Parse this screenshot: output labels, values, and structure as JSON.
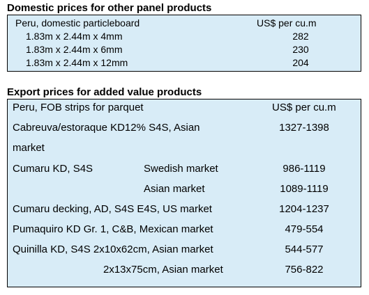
{
  "domestic": {
    "title": "Domestic prices for other panel products",
    "header_label": "Peru, domestic particleboard",
    "header_unit": "US$ per cu.m",
    "rows": [
      {
        "label": "1.83m x 2.44m x 4mm",
        "value": "282"
      },
      {
        "label": "1.83m x 2.44m x 6mm",
        "value": "230"
      },
      {
        "label": "1.83m x 2.44m x 12mm",
        "value": "204"
      }
    ]
  },
  "export": {
    "title": "Export prices for added value products",
    "header_label": "Peru, FOB strips for parquet",
    "header_unit": "US$ per cu.m",
    "rows": [
      {
        "label_line1": "Cabreuva/estoraque KD12% S4S, Asian",
        "label_line2": "market",
        "value": "1327-1398"
      },
      {
        "label": "Cumaru KD, S4S",
        "market": "Swedish market",
        "value": "986-1119"
      },
      {
        "market": "Asian market",
        "value": "1089-1119"
      },
      {
        "label": "Cumaru decking, AD, S4S E4S,  US market",
        "value": "1204-1237"
      },
      {
        "label": "Pumaquiro KD Gr. 1, C&B,  Mexican market",
        "value": "479-554"
      },
      {
        "label": "Quinilla KD, S4S 2x10x62cm,  Asian market",
        "value": "544-577"
      },
      {
        "label": "2x13x75cm, Asian market",
        "value": "756-822"
      }
    ]
  }
}
